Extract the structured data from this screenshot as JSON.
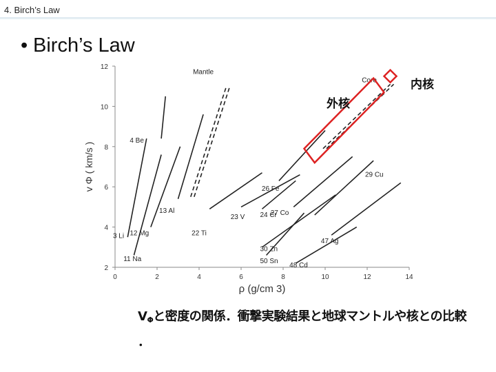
{
  "header": {
    "title": "4. Birch’s Law"
  },
  "slide": {
    "bullet": "•",
    "title": "Birch’s Law"
  },
  "callouts": {
    "outer_core": "外核",
    "inner_core": "内核"
  },
  "caption": {
    "v": "V",
    "sub": "Φ",
    "text": "と密度の関係．衝撃実験結果と地球マントルや核との比較",
    "line2": "．"
  },
  "chart_data": {
    "type": "line",
    "xlabel": "ρ (g/cm 3)",
    "ylabel": "v Φ ( km/s )",
    "xlim": [
      0,
      14
    ],
    "ylim": [
      2,
      12
    ],
    "xticks": [
      0,
      2,
      4,
      6,
      8,
      10,
      12,
      14
    ],
    "yticks": [
      2,
      4,
      6,
      8,
      10,
      12
    ],
    "series": [
      {
        "name": "3 Li",
        "x": [
          0.6,
          1.5
        ],
        "y": [
          3.5,
          8.4
        ]
      },
      {
        "name": "4 Be",
        "x": [
          2.2,
          2.4
        ],
        "y": [
          8.4,
          10.5
        ]
      },
      {
        "name": "12 Mg",
        "x": [
          1.7,
          3.1
        ],
        "y": [
          4.0,
          8.0
        ]
      },
      {
        "name": "11 Na",
        "x": [
          0.9,
          2.2
        ],
        "y": [
          2.6,
          7.6
        ]
      },
      {
        "name": "13 Al",
        "x": [
          3.0,
          4.2
        ],
        "y": [
          5.4,
          9.6
        ]
      },
      {
        "name": "Mantle",
        "x": [
          3.6,
          5.3
        ],
        "y": [
          5.5,
          11.0
        ]
      },
      {
        "name": "22 Ti",
        "x": [
          4.5,
          7.0
        ],
        "y": [
          4.9,
          6.7
        ]
      },
      {
        "name": "23 V",
        "x": [
          6.0,
          8.8
        ],
        "y": [
          5.0,
          6.6
        ]
      },
      {
        "name": "24 Cr",
        "x": [
          7.0,
          8.6
        ],
        "y": [
          4.9,
          6.3
        ]
      },
      {
        "name": "26 Fe",
        "x": [
          7.8,
          10.0
        ],
        "y": [
          6.3,
          8.8
        ]
      },
      {
        "name": "27 Co",
        "x": [
          8.5,
          11.3
        ],
        "y": [
          5.0,
          7.5
        ]
      },
      {
        "name": "29 Cu",
        "x": [
          9.5,
          12.3
        ],
        "y": [
          4.6,
          7.3
        ]
      },
      {
        "name": "30 Zn",
        "x": [
          7.0,
          10.5
        ],
        "y": [
          3.0,
          5.6
        ]
      },
      {
        "name": "50 Sn",
        "x": [
          7.2,
          9.0
        ],
        "y": [
          2.6,
          4.7
        ]
      },
      {
        "name": "47 Ag",
        "x": [
          10.3,
          13.6
        ],
        "y": [
          3.6,
          6.2
        ]
      },
      {
        "name": "48 Cd",
        "x": [
          8.6,
          11.5
        ],
        "y": [
          2.2,
          4.0
        ]
      },
      {
        "name": "Core",
        "x": [
          9.9,
          13.1
        ],
        "y": [
          7.9,
          11.1
        ]
      }
    ]
  }
}
